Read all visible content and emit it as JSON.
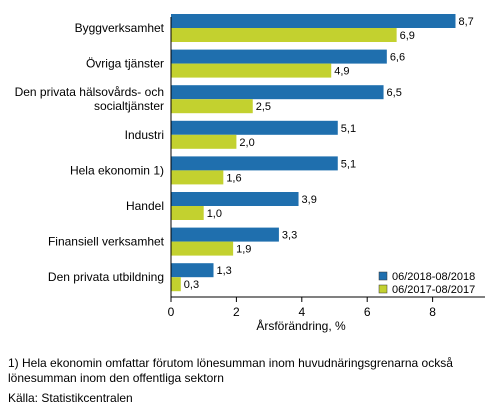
{
  "chart_data": {
    "type": "bar",
    "orientation": "horizontal",
    "categories": [
      [
        "Byggverksamhet"
      ],
      [
        "Övriga tjänster"
      ],
      [
        "Den privata hälsovårds- och",
        "socialtjänster"
      ],
      [
        "Industri"
      ],
      [
        "Hela ekonomin 1)"
      ],
      [
        "Handel"
      ],
      [
        "Finansiell verksamhet"
      ],
      [
        "Den privata utbildning"
      ]
    ],
    "series": [
      {
        "name": "06/2018-08/2018",
        "color": "#1f6fae",
        "values": [
          8.7,
          6.6,
          6.5,
          5.1,
          5.1,
          3.9,
          3.3,
          1.3
        ],
        "labels": [
          "8,7",
          "6,6",
          "6,5",
          "5,1",
          "5,1",
          "3,9",
          "3,3",
          "1,3"
        ]
      },
      {
        "name": "06/2017-08/2017",
        "color": "#c3d12f",
        "values": [
          6.9,
          4.9,
          2.5,
          2.0,
          1.6,
          1.0,
          1.9,
          0.3
        ],
        "labels": [
          "6,9",
          "4,9",
          "2,5",
          "2,0",
          "1,6",
          "1,0",
          "1,9",
          "0,3"
        ]
      }
    ],
    "xlim": [
      0,
      9
    ],
    "xticks": [
      0,
      2,
      4,
      6,
      8
    ],
    "xticklabels": [
      "0",
      "2",
      "4",
      "6",
      "8"
    ],
    "xlabel": "Årsförändring, %",
    "legend_position": "bottom-right",
    "grid": false
  },
  "footnote": "1) Hela ekonomin omfattar förutom lönesumman inom huvudnäringsgrenarna också lönesumman inom den offentliga sektorn",
  "source": "Källa: Statistikcentralen"
}
